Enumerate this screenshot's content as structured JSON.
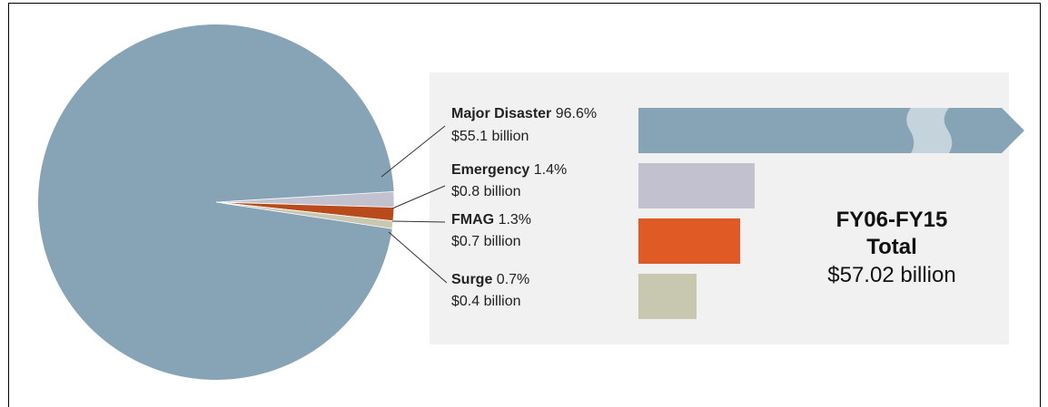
{
  "chart_data": {
    "type": "pie",
    "slices": [
      {
        "name": "Major Disaster",
        "percent_label": "96.6%",
        "amount_label": "$55.1 billion",
        "value": 55.1,
        "color": "#87a3b6"
      },
      {
        "name": "Emergency",
        "percent_label": "1.4%",
        "amount_label": "$0.8 billion",
        "value": 0.8,
        "color": "#c1c1cf"
      },
      {
        "name": "FMAG",
        "percent_label": "1.3%",
        "amount_label": "$0.7 billion",
        "value": 0.7,
        "color": "#b84a1c"
      },
      {
        "name": "Surge",
        "percent_label": "0.7%",
        "amount_label": "$0.4 billion",
        "value": 0.4,
        "color": "#c8c8b0"
      }
    ],
    "bars": [
      {
        "name": "Major Disaster",
        "value": 55.1,
        "color": "#87a3b6",
        "truncated": true
      },
      {
        "name": "Emergency",
        "value": 0.8,
        "color": "#c1c1cf"
      },
      {
        "name": "FMAG",
        "value": 0.7,
        "color": "#e05a25"
      },
      {
        "name": "Surge",
        "value": 0.4,
        "color": "#c8c8b0"
      }
    ],
    "total": {
      "line1": "FY06-FY15",
      "line2": "Total",
      "line3": "$57.02 billion",
      "value": 57.02
    }
  },
  "colors": {
    "panel_background": "#f1f1f1",
    "leader_line": "#333333"
  }
}
